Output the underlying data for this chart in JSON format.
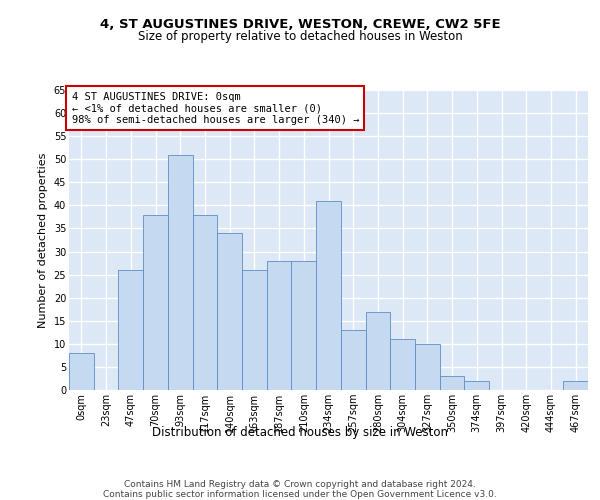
{
  "title_line1": "4, ST AUGUSTINES DRIVE, WESTON, CREWE, CW2 5FE",
  "title_line2": "Size of property relative to detached houses in Weston",
  "xlabel": "Distribution of detached houses by size in Weston",
  "ylabel": "Number of detached properties",
  "categories": [
    "0sqm",
    "23sqm",
    "47sqm",
    "70sqm",
    "93sqm",
    "117sqm",
    "140sqm",
    "163sqm",
    "187sqm",
    "210sqm",
    "234sqm",
    "257sqm",
    "280sqm",
    "304sqm",
    "327sqm",
    "350sqm",
    "374sqm",
    "397sqm",
    "420sqm",
    "444sqm",
    "467sqm"
  ],
  "values": [
    8,
    0,
    26,
    38,
    51,
    38,
    34,
    26,
    28,
    28,
    41,
    13,
    17,
    11,
    10,
    3,
    2,
    0,
    0,
    0,
    2
  ],
  "bar_color": "#c5d9f0",
  "bar_edge_color": "#5b8dc8",
  "annotation_text": "4 ST AUGUSTINES DRIVE: 0sqm\n← <1% of detached houses are smaller (0)\n98% of semi-detached houses are larger (340) →",
  "annotation_box_color": "#ffffff",
  "annotation_box_edge_color": "#cc0000",
  "background_color": "#dce8f5",
  "grid_color": "#ffffff",
  "footer_line1": "Contains HM Land Registry data © Crown copyright and database right 2024.",
  "footer_line2": "Contains public sector information licensed under the Open Government Licence v3.0.",
  "ylim": [
    0,
    65
  ],
  "yticks": [
    0,
    5,
    10,
    15,
    20,
    25,
    30,
    35,
    40,
    45,
    50,
    55,
    60,
    65
  ],
  "title_fontsize": 9.5,
  "subtitle_fontsize": 8.5,
  "axis_label_fontsize": 8,
  "tick_fontsize": 7,
  "annotation_fontsize": 7.5,
  "footer_fontsize": 6.5
}
